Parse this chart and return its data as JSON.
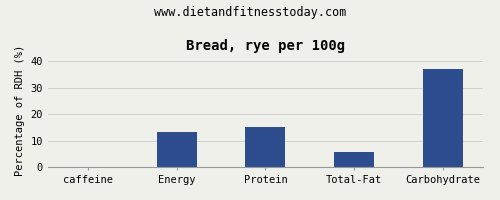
{
  "title": "Bread, rye per 100g",
  "subtitle": "www.dietandfitnesstoday.com",
  "categories": [
    "caffeine",
    "Energy",
    "Protein",
    "Total-Fat",
    "Carbohydrate"
  ],
  "values": [
    0,
    13.3,
    15.2,
    5.6,
    37.0
  ],
  "bar_color": "#2e4d8e",
  "ylabel": "Percentage of RDH (%)",
  "ylim": [
    0,
    43
  ],
  "yticks": [
    0,
    10,
    20,
    30,
    40
  ],
  "background_color": "#f0f0eb",
  "title_fontsize": 10,
  "subtitle_fontsize": 8.5,
  "tick_fontsize": 7.5,
  "ylabel_fontsize": 7.5,
  "bar_width": 0.45
}
